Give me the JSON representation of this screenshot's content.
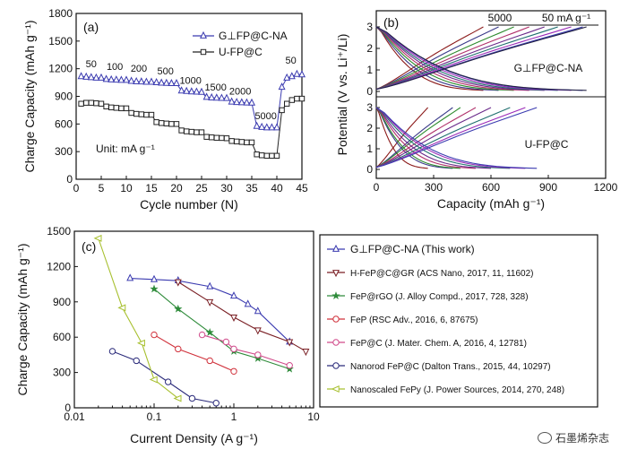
{
  "chart_data": [
    {
      "panel": "(a)",
      "type": "line",
      "xlabel": "Cycle number (N)",
      "ylabel": "Charge Capacity (mAh g⁻¹)",
      "xlim": [
        0,
        45
      ],
      "ylim": [
        0,
        1800
      ],
      "xticks": [
        "0",
        "5",
        "10",
        "15",
        "20",
        "25",
        "30",
        "35",
        "40",
        "45"
      ],
      "yticks": [
        "0",
        "300",
        "600",
        "900",
        "1200",
        "1500",
        "1800"
      ],
      "unit_note": "Unit: mA g⁻¹",
      "legend": {
        "placement": "top-right",
        "entries": [
          "G⊥FP@C-NA",
          "U-FP@C"
        ]
      },
      "rate_labels": [
        {
          "text": "50",
          "x": 3,
          "y": 1215
        },
        {
          "text": "100",
          "x": 7.7,
          "y": 1185
        },
        {
          "text": "200",
          "x": 12.5,
          "y": 1170
        },
        {
          "text": "500",
          "x": 17.8,
          "y": 1140
        },
        {
          "text": "1000",
          "x": 22.8,
          "y": 1035
        },
        {
          "text": "1500",
          "x": 27.8,
          "y": 965
        },
        {
          "text": "2000",
          "x": 32.7,
          "y": 920
        },
        {
          "text": "5000",
          "x": 37.8,
          "y": 650
        },
        {
          "text": "50",
          "x": 42.8,
          "y": 1255
        }
      ],
      "series": [
        {
          "name": "G⊥FP@C-NA",
          "color": "#3b3bb0",
          "marker": "triangle",
          "x": [
            1,
            2,
            3,
            4,
            5,
            6,
            7,
            8,
            9,
            10,
            11,
            12,
            13,
            14,
            15,
            16,
            17,
            18,
            19,
            20,
            21,
            22,
            23,
            24,
            25,
            26,
            27,
            28,
            29,
            30,
            31,
            32,
            33,
            34,
            35,
            36,
            37,
            38,
            39,
            40,
            41,
            42,
            43,
            44,
            45
          ],
          "y": [
            1115,
            1110,
            1105,
            1100,
            1100,
            1085,
            1080,
            1078,
            1075,
            1075,
            1065,
            1060,
            1058,
            1055,
            1055,
            1050,
            1045,
            1042,
            1040,
            1040,
            960,
            955,
            950,
            948,
            945,
            890,
            885,
            882,
            880,
            878,
            840,
            835,
            832,
            830,
            828,
            575,
            565,
            560,
            560,
            560,
            1000,
            1100,
            1115,
            1140,
            1135
          ]
        },
        {
          "name": "U-FP@C",
          "color": "#222222",
          "marker": "square",
          "x": [
            1,
            2,
            3,
            4,
            5,
            6,
            7,
            8,
            9,
            10,
            11,
            12,
            13,
            14,
            15,
            16,
            17,
            18,
            19,
            20,
            21,
            22,
            23,
            24,
            25,
            26,
            27,
            28,
            29,
            30,
            31,
            32,
            33,
            34,
            35,
            36,
            37,
            38,
            39,
            40,
            41,
            42,
            43,
            44,
            45
          ],
          "y": [
            820,
            830,
            830,
            825,
            820,
            790,
            780,
            775,
            770,
            770,
            720,
            710,
            705,
            700,
            700,
            620,
            610,
            605,
            600,
            600,
            530,
            520,
            515,
            510,
            510,
            460,
            455,
            450,
            448,
            445,
            415,
            410,
            405,
            400,
            400,
            270,
            260,
            255,
            255,
            255,
            750,
            820,
            860,
            875,
            875
          ]
        }
      ]
    },
    {
      "panel": "(b)",
      "type": "line",
      "xlabel": "Capacity (mAh g⁻¹)",
      "ylabel": "Potential (V vs. Li⁺/Li)",
      "xlim": [
        0,
        1200
      ],
      "xticks": [
        "0",
        "300",
        "600",
        "900",
        "1200"
      ],
      "ylim_each": [
        0,
        3
      ],
      "yticks": [
        "0",
        "1",
        "2",
        "3"
      ],
      "rate_range_labels": [
        "5000",
        "50 mA g⁻¹"
      ],
      "subplots": [
        {
          "label": "G⊥FP@C-NA",
          "curve_end_capacity": [
            560,
            640,
            720,
            800,
            880,
            950,
            1020,
            1080,
            1100
          ]
        },
        {
          "label": "U-FP@C",
          "curve_end_capacity": [
            270,
            400,
            440,
            520,
            600,
            700,
            780,
            840
          ]
        }
      ],
      "curve_colors": [
        "#8b1a1a",
        "#3a3a8a",
        "#2e8b2e",
        "#b0306a",
        "#6a2a8a",
        "#1f6f6f",
        "#9a2ab8",
        "#3b3bb0",
        "#222244"
      ]
    },
    {
      "panel": "(c)",
      "type": "scatter",
      "xscale": "log",
      "xlabel": "Current Density (A g⁻¹)",
      "ylabel": "Charge Capacity (mAh g⁻¹)",
      "xlim": [
        0.01,
        10
      ],
      "ylim": [
        0,
        1500
      ],
      "xticks": [
        "0.01",
        "0.1",
        "1",
        "10"
      ],
      "yticks": [
        "0",
        "300",
        "600",
        "900",
        "1200",
        "1500"
      ],
      "legend": {
        "placement": "right"
      },
      "series": [
        {
          "name": "G⊥FP@C-NA (This work)",
          "color": "#3b3bb0",
          "marker": "triangle",
          "x": [
            0.05,
            0.1,
            0.2,
            0.5,
            1,
            1.5,
            2,
            5
          ],
          "y": [
            1100,
            1090,
            1080,
            1030,
            950,
            880,
            820,
            560
          ]
        },
        {
          "name": "H-FeP@C@GR (ACS Nano, 2017, 11, 11602)",
          "color": "#7a1f24",
          "marker": "tri-down",
          "x": [
            0.2,
            0.5,
            1,
            2,
            5,
            8
          ],
          "y": [
            1070,
            900,
            770,
            660,
            560,
            480
          ]
        },
        {
          "name": "FeP@rGO (J. Alloy Compd., 2017, 728, 328)",
          "color": "#2e8b3a",
          "marker": "star",
          "x": [
            0.1,
            0.2,
            0.5,
            1,
            2,
            5
          ],
          "y": [
            1010,
            840,
            640,
            480,
            420,
            330
          ]
        },
        {
          "name": "FeP (RSC Adv., 2016, 6, 87675)",
          "color": "#d0303a",
          "marker": "circle",
          "x": [
            0.1,
            0.2,
            0.5,
            1
          ],
          "y": [
            620,
            500,
            400,
            310
          ]
        },
        {
          "name": "FeP@C (J. Mater. Chem. A, 2016, 4, 12781)",
          "color": "#d04a8a",
          "marker": "circle",
          "x": [
            0.4,
            0.8,
            1,
            2,
            5
          ],
          "y": [
            620,
            560,
            500,
            450,
            360
          ]
        },
        {
          "name": "Nanorod FeP@C (Dalton Trans., 2015, 44, 10297)",
          "color": "#2a2a7a",
          "marker": "circle",
          "x": [
            0.03,
            0.06,
            0.15,
            0.3,
            0.6
          ],
          "y": [
            480,
            400,
            220,
            80,
            40
          ]
        },
        {
          "name": "Nanoscaled FePy (J. Power Sources, 2014, 270, 248)",
          "color": "#a8c030",
          "marker": "tri-left",
          "x": [
            0.02,
            0.04,
            0.07,
            0.1,
            0.2
          ],
          "y": [
            1440,
            850,
            550,
            240,
            80
          ]
        }
      ]
    }
  ],
  "watermark": {
    "text": "石墨烯杂志",
    "icon": "wechat-icon"
  }
}
